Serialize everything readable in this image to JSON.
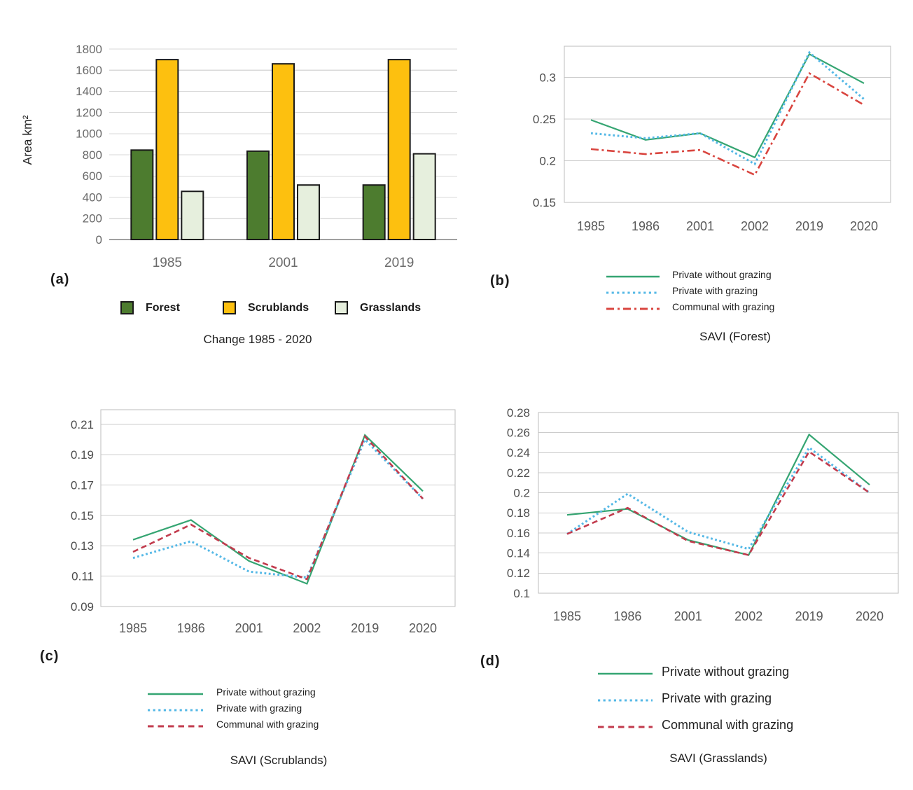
{
  "figure": {
    "panel_labels": [
      "(a)",
      "(b)",
      "(c)",
      "(d)"
    ]
  },
  "chart_data": [
    {
      "id": "a",
      "type": "bar",
      "panel_label": "(a)",
      "title": "Change 1985 - 2020",
      "ylabel": "Area km²",
      "categories": [
        "1985",
        "2001",
        "2019"
      ],
      "series": [
        {
          "name": "Forest",
          "color": "#4D7C2F",
          "values": [
            845,
            835,
            515
          ]
        },
        {
          "name": "Scrublands",
          "color": "#FDC00F",
          "values": [
            1700,
            1660,
            1700
          ]
        },
        {
          "name": "Grasslands",
          "color": "#E6EFDD",
          "values": [
            455,
            515,
            810
          ]
        }
      ],
      "ylim": [
        0,
        1800
      ],
      "yticks": [
        0,
        200,
        400,
        600,
        800,
        1000,
        1200,
        1400,
        1600,
        1800
      ],
      "ytick_labels": [
        "0",
        "200",
        "400",
        "600",
        "800",
        "1000",
        "1200",
        "1400",
        "1600",
        "1800"
      ],
      "bar_outline": "#1A1A1A",
      "grid": true,
      "legend_position": "bottom"
    },
    {
      "id": "b",
      "type": "line",
      "panel_label": "(b)",
      "title": "SAVI (Forest)",
      "x": [
        "1985",
        "1986",
        "2001",
        "2002",
        "2019",
        "2020"
      ],
      "series": [
        {
          "name": "Private without grazing",
          "color": "#35A572",
          "dash": "solid",
          "values": [
            0.249,
            0.225,
            0.233,
            0.204,
            0.328,
            0.293
          ]
        },
        {
          "name": "Private with grazing",
          "color": "#54B8E6",
          "dash": "dotted",
          "values": [
            0.233,
            0.227,
            0.233,
            0.196,
            0.33,
            0.274
          ]
        },
        {
          "name": "Communal with grazing",
          "color": "#D9453F",
          "dash": "dashdot",
          "values": [
            0.214,
            0.208,
            0.213,
            0.183,
            0.305,
            0.267
          ]
        }
      ],
      "ylim": [
        0.15,
        0.3375
      ],
      "yticks": [
        0.15,
        0.2,
        0.25,
        0.3
      ],
      "ytick_labels": [
        "0.15",
        "0.2",
        "0.25",
        "0.3"
      ],
      "grid": true,
      "legend_position": "bottom"
    },
    {
      "id": "c",
      "type": "line",
      "panel_label": "(c)",
      "title": "SAVI (Scrublands)",
      "x": [
        "1985",
        "1986",
        "2001",
        "2002",
        "2019",
        "2020"
      ],
      "series": [
        {
          "name": "Private without grazing",
          "color": "#35A572",
          "dash": "solid",
          "values": [
            0.134,
            0.147,
            0.12,
            0.105,
            0.203,
            0.166
          ]
        },
        {
          "name": "Private with grazing",
          "color": "#54B8E6",
          "dash": "dotted",
          "values": [
            0.122,
            0.133,
            0.113,
            0.109,
            0.2,
            0.161
          ]
        },
        {
          "name": "Communal with grazing",
          "color": "#C23B4D",
          "dash": "dashed",
          "values": [
            0.126,
            0.144,
            0.122,
            0.108,
            0.202,
            0.161
          ]
        }
      ],
      "ylim": [
        0.09,
        0.2197
      ],
      "yticks": [
        0.09,
        0.11,
        0.13,
        0.15,
        0.17,
        0.19,
        0.21
      ],
      "ytick_labels": [
        "0.09",
        "0.11",
        "0.13",
        "0.15",
        "0.17",
        "0.19",
        "0.21"
      ],
      "grid": true,
      "legend_position": "bottom"
    },
    {
      "id": "d",
      "type": "line",
      "panel_label": "(d)",
      "title": "SAVI (Grasslands)",
      "x": [
        "1985",
        "1986",
        "2001",
        "2002",
        "2019",
        "2020"
      ],
      "series": [
        {
          "name": "Private without grazing",
          "color": "#35A572",
          "dash": "solid",
          "values": [
            0.178,
            0.184,
            0.153,
            0.138,
            0.258,
            0.208
          ]
        },
        {
          "name": "Private with grazing",
          "color": "#54B8E6",
          "dash": "dotted",
          "values": [
            0.159,
            0.199,
            0.161,
            0.144,
            0.245,
            0.2
          ]
        },
        {
          "name": "Communal with grazing",
          "color": "#C23B4D",
          "dash": "dashed",
          "values": [
            0.159,
            0.185,
            0.152,
            0.138,
            0.241,
            0.2
          ]
        }
      ],
      "ylim": [
        0.1,
        0.28
      ],
      "yticks": [
        0.1,
        0.12,
        0.14,
        0.16,
        0.18,
        0.2,
        0.22,
        0.24,
        0.26,
        0.28
      ],
      "ytick_labels": [
        "0.1",
        "0.12",
        "0.14",
        "0.16",
        "0.18",
        "0.2",
        "0.22",
        "0.24",
        "0.26",
        "0.28"
      ],
      "grid": true,
      "legend_position": "bottom"
    }
  ]
}
